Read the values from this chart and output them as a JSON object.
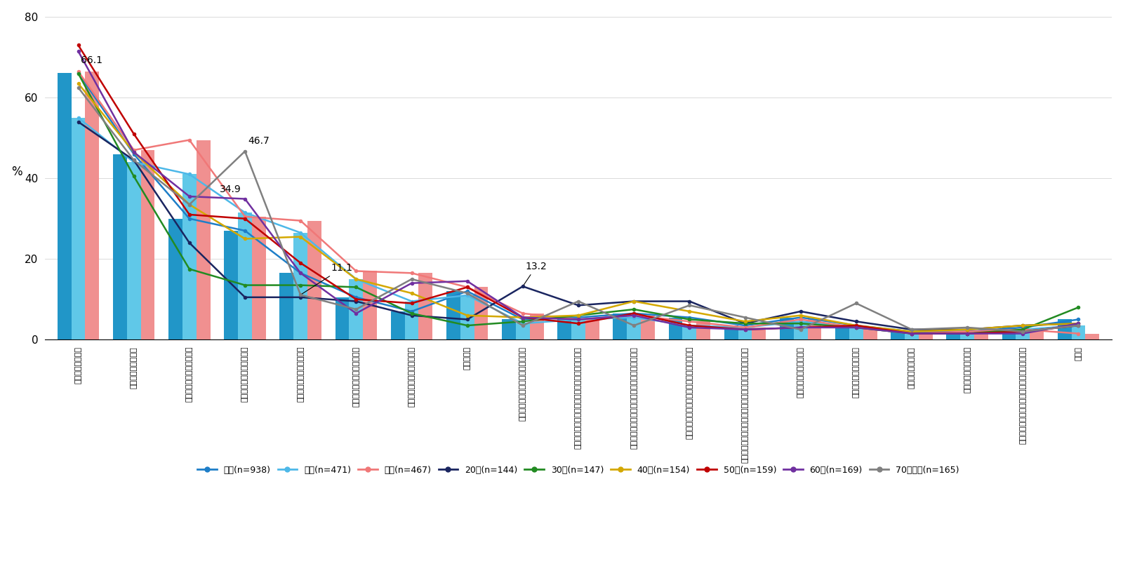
{
  "categories": [
    "旅行にかかる貴用",
    "地元の食事・グルメ",
    "温泉など宿泊施設での体験",
    "名所旧跡等の観光スポット",
    "自宅からのアクセスの良さ",
    "各種旅行割引支援制度の有無",
    "ショッピング・アウトレット",
    "地元のお酒",
    "季節や日時限定のイベントへの参加",
    "外国人観光客が少ない（宿泊施設以外での体験）",
    "アミューズメント施設等、宿泊施設以外での体験",
    "写真映え、インスタ映えするスポットがある",
    "高齢の家族や障害のある家族が行動しやすい環境である",
    "アニメやドラマ等の聖地",
    "飛行機を使う必要がない",
    "外国人観光客が多い",
    "冠婚葬祭行事への参加",
    "環境・ワーケーションできる設備が整っている",
    "その他"
  ],
  "series": {
    "全体(n=938)": [
      66.1,
      46.0,
      30.0,
      27.0,
      16.5,
      10.5,
      7.0,
      12.0,
      5.0,
      5.5,
      6.5,
      5.5,
      3.5,
      5.5,
      3.5,
      2.0,
      2.0,
      3.0,
      5.0
    ],
    "男性(n=471)": [
      55.0,
      44.0,
      41.0,
      31.5,
      26.5,
      15.0,
      9.5,
      11.0,
      4.0,
      5.0,
      5.5,
      3.5,
      3.0,
      4.5,
      3.0,
      1.5,
      1.5,
      2.5,
      3.5
    ],
    "女性(n=467)": [
      66.5,
      47.0,
      49.5,
      30.5,
      29.5,
      17.0,
      16.5,
      13.0,
      6.5,
      5.0,
      6.0,
      4.5,
      3.0,
      5.0,
      3.0,
      1.5,
      2.0,
      2.5,
      1.5
    ],
    "20代(n=144)": [
      54.0,
      44.5,
      24.0,
      10.5,
      10.5,
      9.5,
      6.0,
      5.0,
      13.2,
      8.5,
      9.5,
      9.5,
      4.0,
      7.0,
      4.5,
      2.5,
      2.5,
      3.5,
      4.0
    ],
    "30代(n=147)": [
      66.0,
      40.5,
      17.5,
      13.5,
      13.5,
      13.0,
      6.5,
      3.5,
      4.5,
      6.0,
      7.5,
      5.0,
      4.0,
      4.0,
      3.0,
      1.5,
      1.5,
      2.5,
      8.0
    ],
    "40代(n=154)": [
      63.5,
      46.5,
      33.5,
      25.0,
      25.5,
      15.0,
      11.5,
      6.0,
      5.5,
      6.0,
      9.5,
      7.0,
      4.5,
      6.0,
      3.5,
      2.0,
      2.5,
      3.5,
      4.0
    ],
    "50代(n=159)": [
      73.0,
      51.0,
      31.0,
      30.0,
      19.0,
      10.0,
      9.0,
      13.0,
      5.5,
      4.0,
      6.5,
      3.5,
      2.5,
      3.0,
      3.5,
      1.5,
      1.5,
      2.0,
      3.5
    ],
    "60代(n=169)": [
      71.5,
      46.5,
      35.5,
      34.9,
      16.5,
      6.5,
      14.0,
      14.5,
      5.5,
      5.0,
      6.0,
      3.0,
      2.5,
      3.0,
      3.0,
      1.5,
      1.5,
      1.5,
      4.0
    ],
    "70歳以上(n=165)": [
      62.5,
      44.5,
      33.5,
      46.7,
      11.1,
      7.5,
      15.0,
      11.5,
      3.5,
      9.5,
      3.5,
      8.5,
      5.5,
      2.5,
      9.0,
      2.5,
      3.0,
      2.0,
      3.5
    ]
  },
  "line_colors": {
    "全体(n=938)": "#1E7EC8",
    "男性(n=471)": "#4DB8E8",
    "女性(n=467)": "#F07878",
    "20代(n=144)": "#1A2560",
    "30代(n=147)": "#228B22",
    "40代(n=154)": "#D4A800",
    "50代(n=159)": "#C00000",
    "60代(n=169)": "#7030A0",
    "70歳以上(n=165)": "#808080"
  },
  "bar_series": [
    "全体(n=938)",
    "男性(n=471)",
    "女性(n=467)"
  ],
  "bar_colors": [
    "#2196C8",
    "#60C8E8",
    "#F09090"
  ],
  "ylim": [
    0,
    80
  ],
  "yticks": [
    0,
    20,
    40,
    60,
    80
  ],
  "legend_labels": [
    "全体(n=938)",
    "男性(n=471)",
    "女性(n=467)",
    "20代(n=144)",
    "30代(n=147)",
    "40代(n=154)",
    "50代(n=159)",
    "60代(n=169)",
    "70歳以上(n=165)"
  ]
}
